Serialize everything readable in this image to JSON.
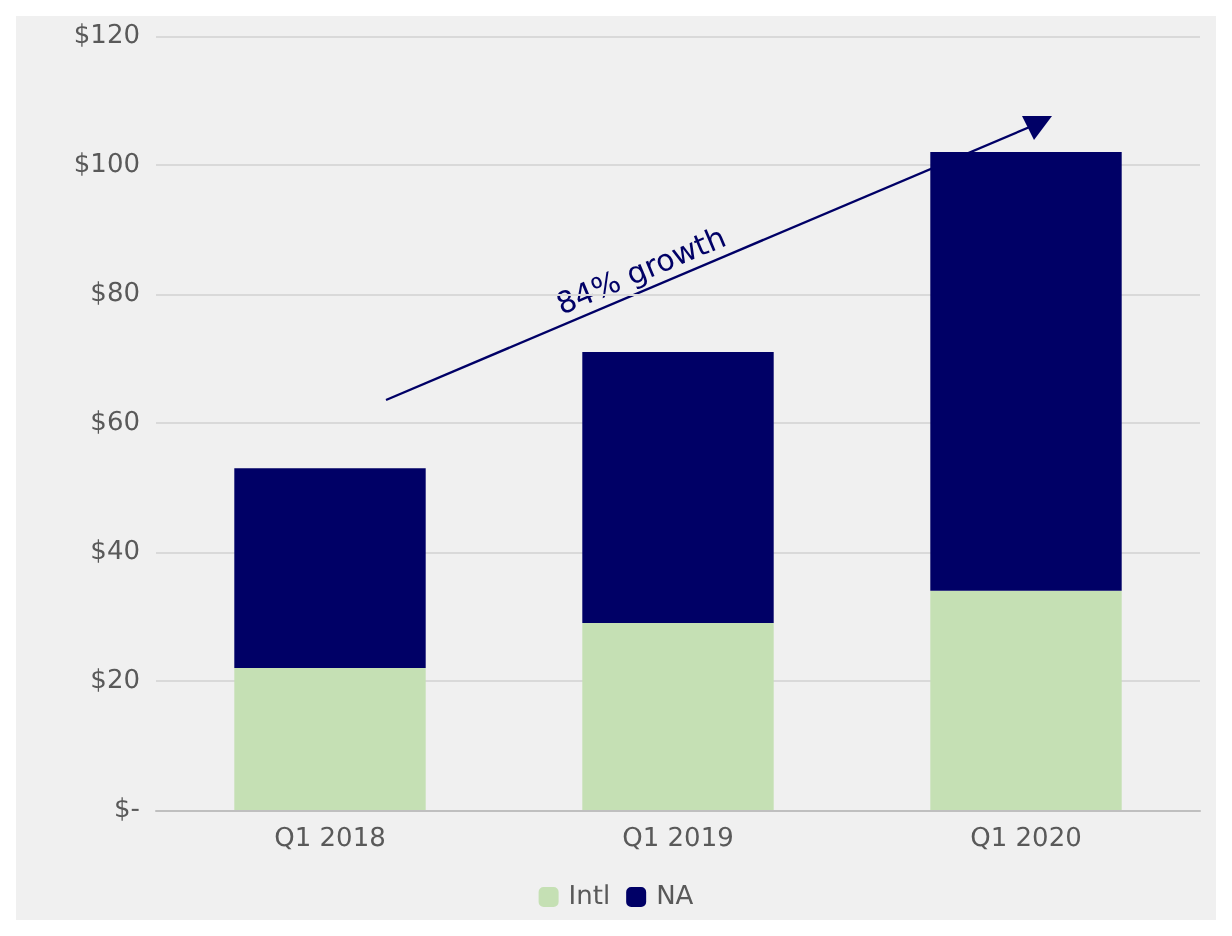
{
  "chart_data": {
    "type": "bar",
    "stacked": true,
    "categories": [
      "Q1 2018",
      "Q1 2019",
      "Q1 2020"
    ],
    "series": [
      {
        "name": "Intl",
        "color": "#c5e0b4",
        "values": [
          22,
          29,
          34
        ]
      },
      {
        "name": "NA",
        "color": "#000066",
        "values": [
          31,
          42,
          68
        ]
      }
    ],
    "ylim": [
      0,
      120
    ],
    "yticks": [
      {
        "value": 0,
        "label": "$-"
      },
      {
        "value": 20,
        "label": "$20"
      },
      {
        "value": 40,
        "label": "$40"
      },
      {
        "value": 60,
        "label": "$60"
      },
      {
        "value": 80,
        "label": "$80"
      },
      {
        "value": 100,
        "label": "$100"
      },
      {
        "value": 120,
        "label": "$120"
      }
    ],
    "grid": "y",
    "legend": "bottom",
    "annotations": [
      "84% growth"
    ]
  }
}
